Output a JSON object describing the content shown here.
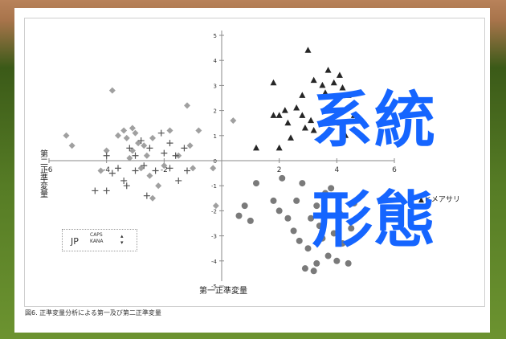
{
  "overlay_lines": [
    "系統",
    "形態"
  ],
  "caption": "図6. 正準変量分析による第一及び第二正準変量",
  "ime": {
    "mode": "JP",
    "caps": "CAPS",
    "kana": "KANA"
  },
  "chart_data": {
    "type": "scatter",
    "xlabel": "第一正準変量",
    "ylabel": "第二正準変量",
    "xlim": [
      -6,
      6
    ],
    "ylim": [
      -5,
      5
    ],
    "xticks": [
      -6,
      -4,
      -2,
      0,
      2,
      4,
      6
    ],
    "yticks": [
      -5,
      -4,
      -3,
      -2,
      -1,
      0,
      1,
      2,
      3,
      4,
      5
    ],
    "legend_position": "right",
    "legend_visible": [
      "ヒメアサリ"
    ],
    "series": [
      {
        "marker": "diamond",
        "color": "#a0a0a0",
        "points": [
          [
            -5.4,
            1.0
          ],
          [
            -5.2,
            0.6
          ],
          [
            -3.8,
            2.8
          ],
          [
            -4.0,
            0.4
          ],
          [
            -4.2,
            -0.4
          ],
          [
            -3.6,
            1.0
          ],
          [
            -3.4,
            1.2
          ],
          [
            -3.3,
            0.9
          ],
          [
            -3.1,
            1.3
          ],
          [
            -3.0,
            1.1
          ],
          [
            -2.9,
            0.7
          ],
          [
            -3.1,
            0.4
          ],
          [
            -3.2,
            0.1
          ],
          [
            -2.7,
            0.6
          ],
          [
            -2.4,
            0.9
          ],
          [
            -2.6,
            0.2
          ],
          [
            -2.8,
            -0.3
          ],
          [
            -2.5,
            -0.6
          ],
          [
            -2.2,
            -1.0
          ],
          [
            -2.4,
            -1.5
          ],
          [
            -2.0,
            -0.2
          ],
          [
            -1.8,
            1.2
          ],
          [
            -1.5,
            0.2
          ],
          [
            -1.1,
            0.6
          ],
          [
            -1.0,
            -0.3
          ],
          [
            -1.2,
            2.2
          ],
          [
            -0.8,
            1.2
          ],
          [
            -0.3,
            -0.3
          ],
          [
            0.4,
            1.6
          ],
          [
            -0.2,
            -1.8
          ]
        ]
      },
      {
        "marker": "plus",
        "color": "#555555",
        "points": [
          [
            -4.4,
            -1.2
          ],
          [
            -4.0,
            -1.2
          ],
          [
            -4.0,
            0.2
          ],
          [
            -3.8,
            -0.5
          ],
          [
            -3.6,
            -0.3
          ],
          [
            -3.4,
            -0.8
          ],
          [
            -3.3,
            -1.0
          ],
          [
            -3.2,
            0.5
          ],
          [
            -3.0,
            -0.4
          ],
          [
            -3.0,
            0.2
          ],
          [
            -2.8,
            0.8
          ],
          [
            -2.7,
            -0.2
          ],
          [
            -2.6,
            -1.4
          ],
          [
            -2.5,
            0.5
          ],
          [
            -2.3,
            -0.4
          ],
          [
            -2.1,
            1.1
          ],
          [
            -2.0,
            0.3
          ],
          [
            -1.8,
            -0.3
          ],
          [
            -1.8,
            0.7
          ],
          [
            -1.6,
            0.2
          ],
          [
            -1.5,
            -0.8
          ],
          [
            -1.3,
            0.5
          ],
          [
            -1.2,
            -0.4
          ]
        ]
      },
      {
        "marker": "triangle",
        "color": "#262626",
        "points": [
          [
            1.2,
            0.5
          ],
          [
            1.8,
            1.8
          ],
          [
            1.8,
            3.1
          ],
          [
            2.0,
            1.8
          ],
          [
            2.2,
            2.0
          ],
          [
            2.3,
            1.5
          ],
          [
            2.4,
            0.9
          ],
          [
            2.0,
            0.5
          ],
          [
            2.6,
            2.1
          ],
          [
            2.8,
            1.8
          ],
          [
            2.9,
            1.3
          ],
          [
            3.1,
            1.6
          ],
          [
            3.2,
            1.2
          ],
          [
            2.8,
            2.6
          ],
          [
            3.0,
            4.4
          ],
          [
            3.2,
            3.2
          ],
          [
            3.5,
            3.0
          ],
          [
            3.6,
            2.7
          ],
          [
            3.7,
            3.6
          ],
          [
            3.9,
            3.1
          ],
          [
            4.1,
            3.4
          ],
          [
            4.2,
            2.9
          ],
          [
            4.4,
            2.6
          ],
          [
            4.1,
            1.5
          ],
          [
            4.6,
            1.8
          ],
          [
            4.3,
            1.0
          ]
        ]
      },
      {
        "marker": "circle",
        "color": "#7a7a7a",
        "points": [
          [
            0.6,
            -2.2
          ],
          [
            0.8,
            -1.8
          ],
          [
            1.0,
            -2.4
          ],
          [
            1.2,
            -0.9
          ],
          [
            1.8,
            -1.6
          ],
          [
            2.0,
            -2.0
          ],
          [
            2.1,
            -0.7
          ],
          [
            2.3,
            -2.3
          ],
          [
            2.5,
            -2.8
          ],
          [
            2.6,
            -1.6
          ],
          [
            2.7,
            -3.2
          ],
          [
            2.8,
            -0.9
          ],
          [
            3.0,
            -3.5
          ],
          [
            3.1,
            -2.3
          ],
          [
            3.2,
            -4.4
          ],
          [
            3.3,
            -1.8
          ],
          [
            3.4,
            -2.6
          ],
          [
            3.5,
            -3.1
          ],
          [
            3.6,
            -1.3
          ],
          [
            3.7,
            -3.8
          ],
          [
            3.8,
            -1.1
          ],
          [
            3.9,
            -2.9
          ],
          [
            4.0,
            -4.0
          ],
          [
            4.1,
            -2.1
          ],
          [
            4.2,
            -3.3
          ],
          [
            4.4,
            -4.1
          ],
          [
            4.5,
            -2.7
          ],
          [
            4.6,
            -1.7
          ],
          [
            3.3,
            -4.1
          ],
          [
            2.9,
            -4.3
          ]
        ]
      }
    ]
  }
}
